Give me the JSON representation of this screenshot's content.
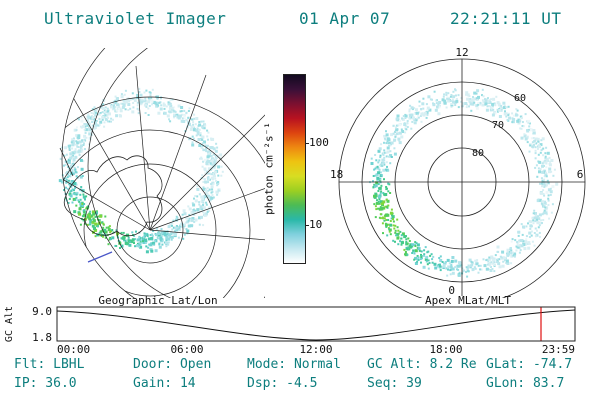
{
  "header": {
    "title": "Ultraviolet Imager",
    "date": "01 Apr 07",
    "time": "22:21:11 UT"
  },
  "colorbar": {
    "label": "photon cm⁻²s⁻¹",
    "tick_100": "100",
    "tick_10": "10",
    "gradient_top_to_bottom": [
      "#120a20",
      "#3a1038",
      "#7c1030",
      "#b81220",
      "#dd4410",
      "#ee8811",
      "#eec411",
      "#d8dd22",
      "#9ccf22",
      "#4cbb55",
      "#2ab8a8",
      "#7fd0dd",
      "#c4e8f0",
      "#ffffff"
    ]
  },
  "panels": {
    "geo": {
      "caption": "Geographic Lat/Lon"
    },
    "polar": {
      "caption": "Apex MLat/MLT",
      "mlt_top": "12",
      "mlt_left": "18",
      "mlt_right": "6",
      "mlt_bottom": "0",
      "mlat_inner": "80",
      "mlat_mid": "70",
      "mlat_outer": "60"
    }
  },
  "strip": {
    "ylabel": "GC Alt",
    "ytick_top": "9.0",
    "ytick_bottom": "1.8",
    "xticks": [
      "00:00",
      "06:00",
      "12:00",
      "18:00",
      "23:59"
    ]
  },
  "status": {
    "row1": [
      "Flt: LBHL",
      "Door: Open",
      "Mode: Normal",
      "GC Alt: 8.2 Re",
      "GLat: -74.7"
    ],
    "row2": [
      "IP: 36.0",
      "Gain: 14",
      "Dsp: -4.5",
      "Seq: 39",
      "GLon: 83.7"
    ]
  },
  "colors": {
    "accent_teal": "#0d7e7e",
    "marker_red": "#e01010",
    "track_blue": "#4956c8",
    "grid_black": "#222222",
    "aurora_ramp": [
      "#edf7f9",
      "#d8eff3",
      "#bce7ed",
      "#97dde2",
      "#6fd2d2",
      "#4ecab4",
      "#44ca8a",
      "#52cd5c",
      "#7fd63c"
    ]
  },
  "chart_data": [
    {
      "type": "heatmap",
      "title": "Geographic Lat/Lon",
      "description": "Ultraviolet auroral oval image over the southern polar region, rendered on a geographic latitude/longitude grid with Antarctica coastline; ring of emission brightest on the dusk/left side",
      "value_label": "photon cm⁻²s⁻¹",
      "scale": "log",
      "colorbar_ticks": [
        10,
        100
      ]
    },
    {
      "type": "heatmap",
      "title": "Apex MLat/MLT",
      "description": "Same ultraviolet auroral image mapped into Apex magnetic latitude / magnetic local time polar coordinates; brightest emission near 18 MLT",
      "mlat_rings": [
        80,
        70,
        60
      ],
      "mlt_spokes": [
        "12",
        "18",
        "6",
        "0"
      ],
      "value_label": "photon cm⁻²s⁻¹",
      "scale": "log",
      "colorbar_ticks": [
        10,
        100
      ]
    },
    {
      "type": "line",
      "title": "GC Alt",
      "ylabel": "GC Alt",
      "yticks": [
        1.8,
        9.0
      ],
      "xticks": [
        "00:00",
        "06:00",
        "12:00",
        "18:00",
        "23:59"
      ],
      "approx_points": [
        {
          "t": "00:00",
          "alt": 8.3
        },
        {
          "t": "06:00",
          "alt": 4.9
        },
        {
          "t": "12:00",
          "alt": 1.9
        },
        {
          "t": "18:00",
          "alt": 4.9
        },
        {
          "t": "23:59",
          "alt": 8.4
        }
      ],
      "annotations": [
        "red vertical marker near 22:21 UT (current time)"
      ],
      "grid": false,
      "legend": false
    }
  ]
}
